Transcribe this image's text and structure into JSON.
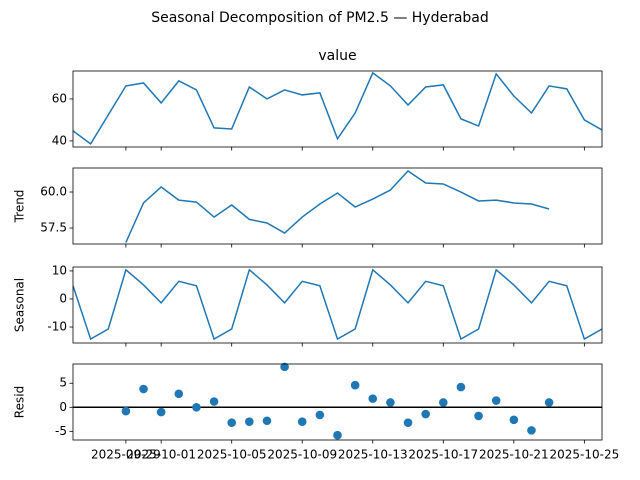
{
  "title": "Seasonal Decomposition of PM2.5 — Hyderabad",
  "chart_data": [
    {
      "type": "line",
      "title": "value",
      "color": "#1f77b4",
      "x": [
        "2025-09-26",
        "2025-09-27",
        "2025-09-28",
        "2025-09-29",
        "2025-09-30",
        "2025-10-01",
        "2025-10-02",
        "2025-10-03",
        "2025-10-04",
        "2025-10-05",
        "2025-10-06",
        "2025-10-07",
        "2025-10-08",
        "2025-10-09",
        "2025-10-10",
        "2025-10-11",
        "2025-10-12",
        "2025-10-13",
        "2025-10-14",
        "2025-10-15",
        "2025-10-16",
        "2025-10-17",
        "2025-10-18",
        "2025-10-19",
        "2025-10-20",
        "2025-10-21",
        "2025-10-22",
        "2025-10-23",
        "2025-10-24",
        "2025-10-25",
        "2025-10-26"
      ],
      "values": [
        44.8,
        38.6,
        52.4,
        66.2,
        67.6,
        58.1,
        68.6,
        64.3,
        46.2,
        45.7,
        65.7,
        60,
        64.3,
        61.9,
        62.9,
        41,
        53.3,
        72.4,
        66.2,
        57.1,
        65.7,
        66.7,
        50.5,
        47.1,
        71.9,
        61.4,
        53.3,
        66.2,
        64.8,
        50,
        45.2
      ],
      "xlim": [
        "2025-09-26",
        "2025-10-26"
      ],
      "xticks": [
        "2025-09-29",
        "2025-10-01",
        "2025-10-05",
        "2025-10-09",
        "2025-10-13",
        "2025-10-17",
        "2025-10-21",
        "2025-10-25"
      ],
      "ylim": [
        37.1,
        73.3
      ],
      "yticks": [
        40,
        60
      ]
    },
    {
      "type": "line",
      "ylabel": "Trend",
      "color": "#1f77b4",
      "x": [
        "2025-09-26",
        "2025-09-27",
        "2025-09-28",
        "2025-09-29",
        "2025-09-30",
        "2025-10-01",
        "2025-10-02",
        "2025-10-03",
        "2025-10-04",
        "2025-10-05",
        "2025-10-06",
        "2025-10-07",
        "2025-10-08",
        "2025-10-09",
        "2025-10-10",
        "2025-10-11",
        "2025-10-12",
        "2025-10-13",
        "2025-10-14",
        "2025-10-15",
        "2025-10-16",
        "2025-10-17",
        "2025-10-18",
        "2025-10-19",
        "2025-10-20",
        "2025-10-21",
        "2025-10-22",
        "2025-10-23",
        "2025-10-24",
        "2025-10-25",
        "2025-10-26"
      ],
      "values": [
        null,
        null,
        null,
        56.5,
        59.24,
        60.35,
        59.44,
        59.3,
        58.26,
        59.1,
        58.1,
        57.85,
        57.15,
        58.26,
        59.17,
        59.93,
        58.96,
        59.51,
        60.14,
        61.46,
        60.63,
        60.56,
        60,
        59.38,
        59.44,
        59.24,
        59.17,
        58.82,
        null,
        null,
        null
      ],
      "xlim": [
        "2025-09-26",
        "2025-10-26"
      ],
      "xticks": [
        "2025-09-29",
        "2025-10-01",
        "2025-10-05",
        "2025-10-09",
        "2025-10-13",
        "2025-10-17",
        "2025-10-21",
        "2025-10-25"
      ],
      "ylim": [
        56.39,
        61.67
      ],
      "yticks": [
        57.5,
        {
          "value": 60,
          "label": "60.0"
        }
      ]
    },
    {
      "type": "line",
      "ylabel": "Seasonal",
      "color": "#1f77b4",
      "x": [
        "2025-09-26",
        "2025-09-27",
        "2025-09-28",
        "2025-09-29",
        "2025-09-30",
        "2025-10-01",
        "2025-10-02",
        "2025-10-03",
        "2025-10-04",
        "2025-10-05",
        "2025-10-06",
        "2025-10-07",
        "2025-10-08",
        "2025-10-09",
        "2025-10-10",
        "2025-10-11",
        "2025-10-12",
        "2025-10-13",
        "2025-10-14",
        "2025-10-15",
        "2025-10-16",
        "2025-10-17",
        "2025-10-18",
        "2025-10-19",
        "2025-10-20",
        "2025-10-21",
        "2025-10-22",
        "2025-10-23",
        "2025-10-24",
        "2025-10-25",
        "2025-10-26"
      ],
      "values": [
        4.7,
        -14.3,
        -10.7,
        10.4,
        5.0,
        -1.4,
        6.3,
        4.7,
        -14.3,
        -10.7,
        10.4,
        5.0,
        -1.4,
        6.3,
        4.7,
        -14.3,
        -10.7,
        10.4,
        5.0,
        -1.4,
        6.3,
        4.7,
        -14.3,
        -10.7,
        10.4,
        5.0,
        -1.4,
        6.3,
        4.7,
        -14.3,
        -10.7
      ],
      "xlim": [
        "2025-09-26",
        "2025-10-26"
      ],
      "xticks": [
        "2025-09-29",
        "2025-10-01",
        "2025-10-05",
        "2025-10-09",
        "2025-10-13",
        "2025-10-17",
        "2025-10-21",
        "2025-10-25"
      ],
      "ylim": [
        -15.7,
        11.4
      ],
      "yticks": [
        -10,
        0,
        10
      ]
    },
    {
      "type": "scatter",
      "ylabel": "Resid",
      "color": "#1f77b4",
      "hline": 0,
      "x": [
        "2025-09-26",
        "2025-09-27",
        "2025-09-28",
        "2025-09-29",
        "2025-09-30",
        "2025-10-01",
        "2025-10-02",
        "2025-10-03",
        "2025-10-04",
        "2025-10-05",
        "2025-10-06",
        "2025-10-07",
        "2025-10-08",
        "2025-10-09",
        "2025-10-10",
        "2025-10-11",
        "2025-10-12",
        "2025-10-13",
        "2025-10-14",
        "2025-10-15",
        "2025-10-16",
        "2025-10-17",
        "2025-10-18",
        "2025-10-19",
        "2025-10-20",
        "2025-10-21",
        "2025-10-22",
        "2025-10-23",
        "2025-10-24",
        "2025-10-25",
        "2025-10-26"
      ],
      "values": [
        null,
        null,
        null,
        -0.8,
        3.8,
        -1,
        2.8,
        0,
        1.2,
        -3.2,
        -3,
        -2.8,
        8.4,
        -3,
        -1.6,
        -5.8,
        4.6,
        1.8,
        1,
        -3.2,
        -1.4,
        1,
        4.2,
        -1.8,
        1.4,
        -2.6,
        -4.8,
        1,
        null,
        null,
        null
      ],
      "xlim": [
        "2025-09-26",
        "2025-10-26"
      ],
      "xticks": [
        "2025-09-29",
        "2025-10-01",
        "2025-10-05",
        "2025-10-09",
        "2025-10-13",
        "2025-10-17",
        "2025-10-21",
        "2025-10-25"
      ],
      "ylim": [
        -6.8,
        9
      ],
      "yticks": [
        -5,
        0,
        5
      ]
    }
  ]
}
